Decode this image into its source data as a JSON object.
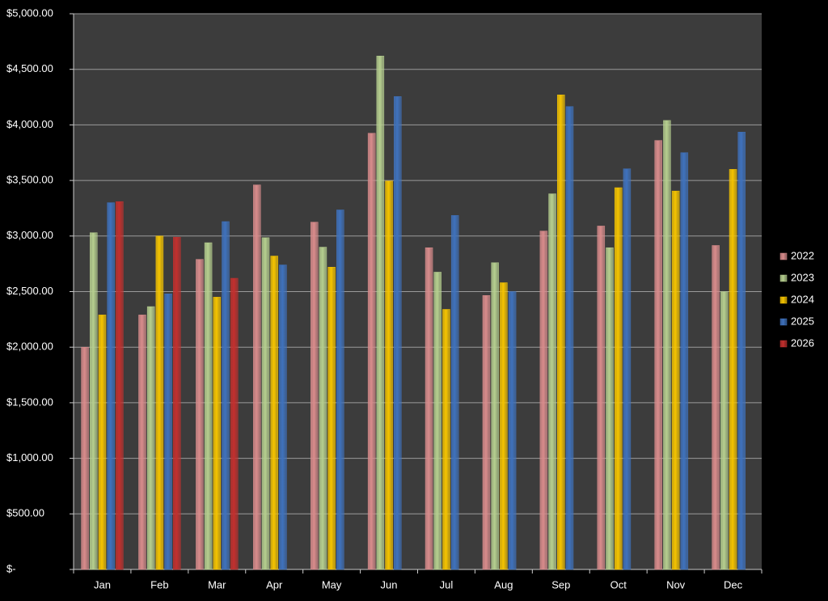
{
  "chart_data": {
    "type": "bar",
    "categories": [
      "Jan",
      "Feb",
      "Mar",
      "Apr",
      "May",
      "Jun",
      "Jul",
      "Aug",
      "Sep",
      "Oct",
      "Nov",
      "Dec"
    ],
    "series": [
      {
        "name": "2022",
        "color": "#d98c8c",
        "values": [
          2000,
          2290,
          2790,
          3460,
          3125,
          3925,
          2895,
          2465,
          3045,
          3090,
          3860,
          2915
        ]
      },
      {
        "name": "2023",
        "color": "#b6cf8f",
        "values": [
          3030,
          2365,
          2940,
          2985,
          2900,
          4620,
          2675,
          2760,
          3380,
          2895,
          4040,
          2500
        ]
      },
      {
        "name": "2024",
        "color": "#f5c400",
        "values": [
          2290,
          3000,
          2450,
          2820,
          2720,
          3495,
          2340,
          2580,
          4270,
          3435,
          3405,
          3600
        ]
      },
      {
        "name": "2025",
        "color": "#3f72bd",
        "values": [
          3300,
          2480,
          3130,
          2740,
          3235,
          4255,
          3185,
          2500,
          4165,
          3605,
          3750,
          3935
        ]
      },
      {
        "name": "2026",
        "color": "#c3302e",
        "values": [
          3310,
          2990,
          2620,
          null,
          null,
          null,
          null,
          null,
          null,
          null,
          null,
          null
        ]
      }
    ],
    "ylim": [
      0,
      5000
    ],
    "yticks": [
      {
        "value": 0,
        "label": "$-"
      },
      {
        "value": 500,
        "label": "$500.00"
      },
      {
        "value": 1000,
        "label": "$1,000.00"
      },
      {
        "value": 1500,
        "label": "$1,500.00"
      },
      {
        "value": 2000,
        "label": "$2,000.00"
      },
      {
        "value": 2500,
        "label": "$2,500.00"
      },
      {
        "value": 3000,
        "label": "$3,000.00"
      },
      {
        "value": 3500,
        "label": "$3,500.00"
      },
      {
        "value": 4000,
        "label": "$4,000.00"
      },
      {
        "value": 4500,
        "label": "$4,500.00"
      },
      {
        "value": 5000,
        "label": "$5,000.00"
      }
    ],
    "grid": true,
    "legend": "right"
  }
}
